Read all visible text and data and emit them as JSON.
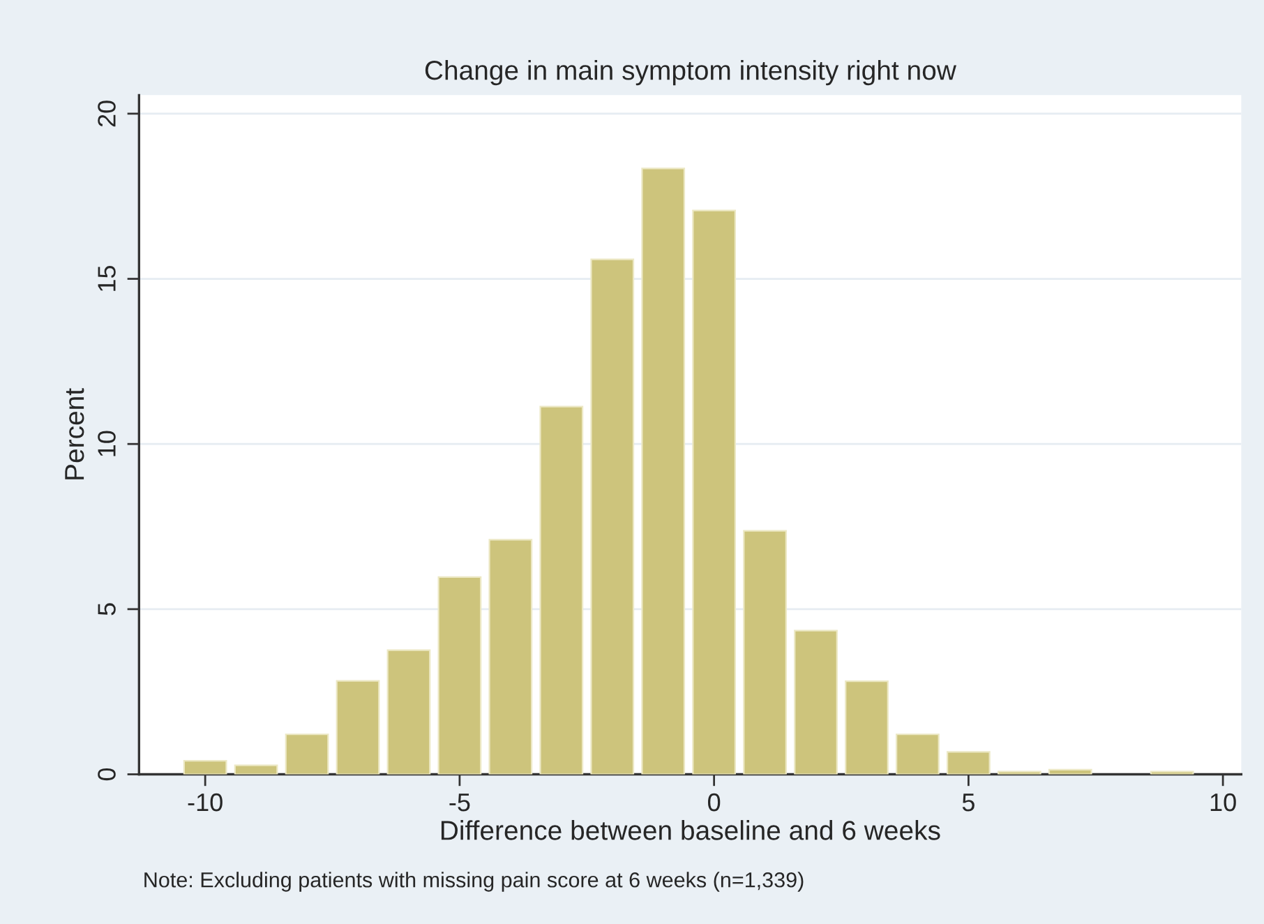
{
  "chart_data": {
    "type": "bar",
    "title": "Change in main symptom intensity right now",
    "xlabel": "Difference between baseline and 6 weeks",
    "ylabel": "Percent",
    "annotations": [
      "Note: Excluding patients with missing pain score at 6 weeks (n=1,339)"
    ],
    "x": [
      -10,
      -9,
      -8,
      -7,
      -6,
      -5,
      -4,
      -3,
      -2,
      -1,
      0,
      1,
      2,
      3,
      4,
      5,
      6,
      7,
      9
    ],
    "values": [
      0.41,
      0.27,
      1.21,
      2.83,
      3.76,
      5.97,
      7.1,
      11.13,
      15.59,
      18.34,
      17.07,
      7.37,
      4.35,
      2.82,
      1.21,
      0.68,
      0.08,
      0.14,
      0.08
    ],
    "color": "#cdc47c",
    "xlim": [
      -11.3,
      10.36
    ],
    "xticks": [
      -10,
      -5,
      0,
      5,
      10
    ],
    "ylim": [
      0,
      20.56
    ],
    "yticks": [
      0,
      5,
      10,
      15,
      20
    ],
    "grid": "y"
  }
}
